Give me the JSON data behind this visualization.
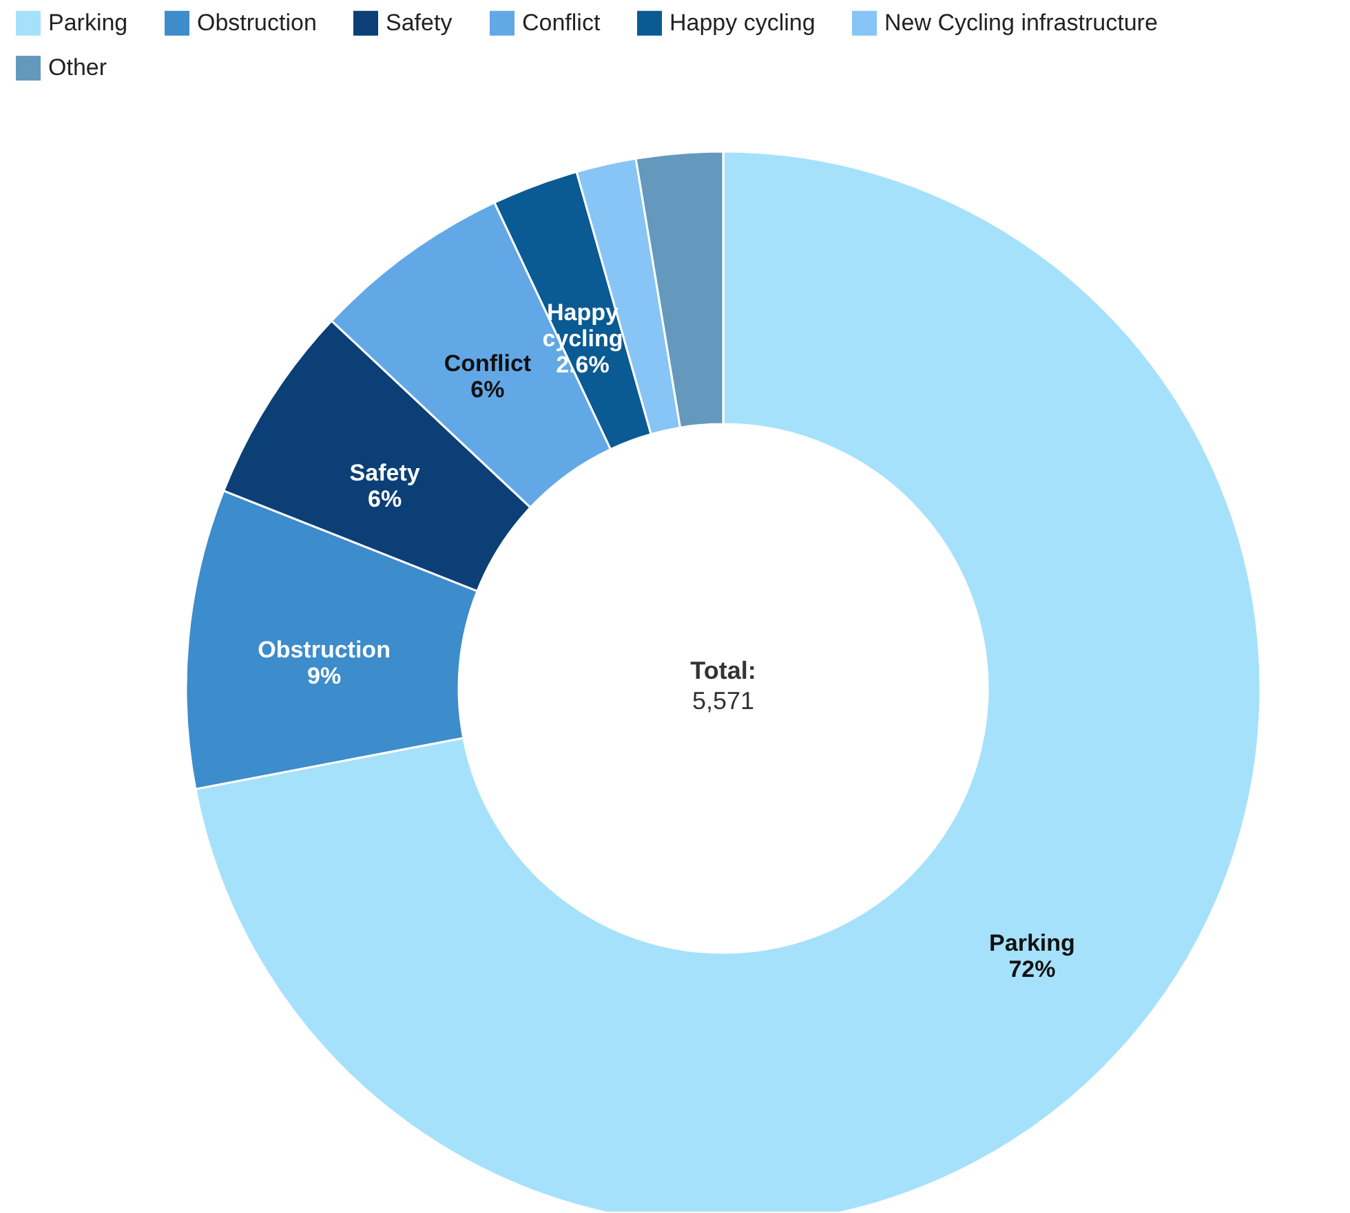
{
  "chart_data": {
    "type": "donut",
    "categories": [
      "Parking",
      "Obstruction",
      "Safety",
      "Conflict",
      "Happy cycling",
      "New Cycling infrastructure",
      "Other"
    ],
    "values": [
      72,
      9,
      6,
      6,
      2.6,
      1.8,
      2.6
    ],
    "colors": [
      "#a6e1fb",
      "#3d8ccb",
      "#0b3f75",
      "#63a8e6",
      "#0a5a93",
      "#86c5f5",
      "#6499bd"
    ],
    "value_labels": [
      "72%",
      "9%",
      "6%",
      "6%",
      "2.6%",
      null,
      null
    ],
    "annotations": [
      "Total:",
      "5,571"
    ],
    "legend": "top left"
  }
}
